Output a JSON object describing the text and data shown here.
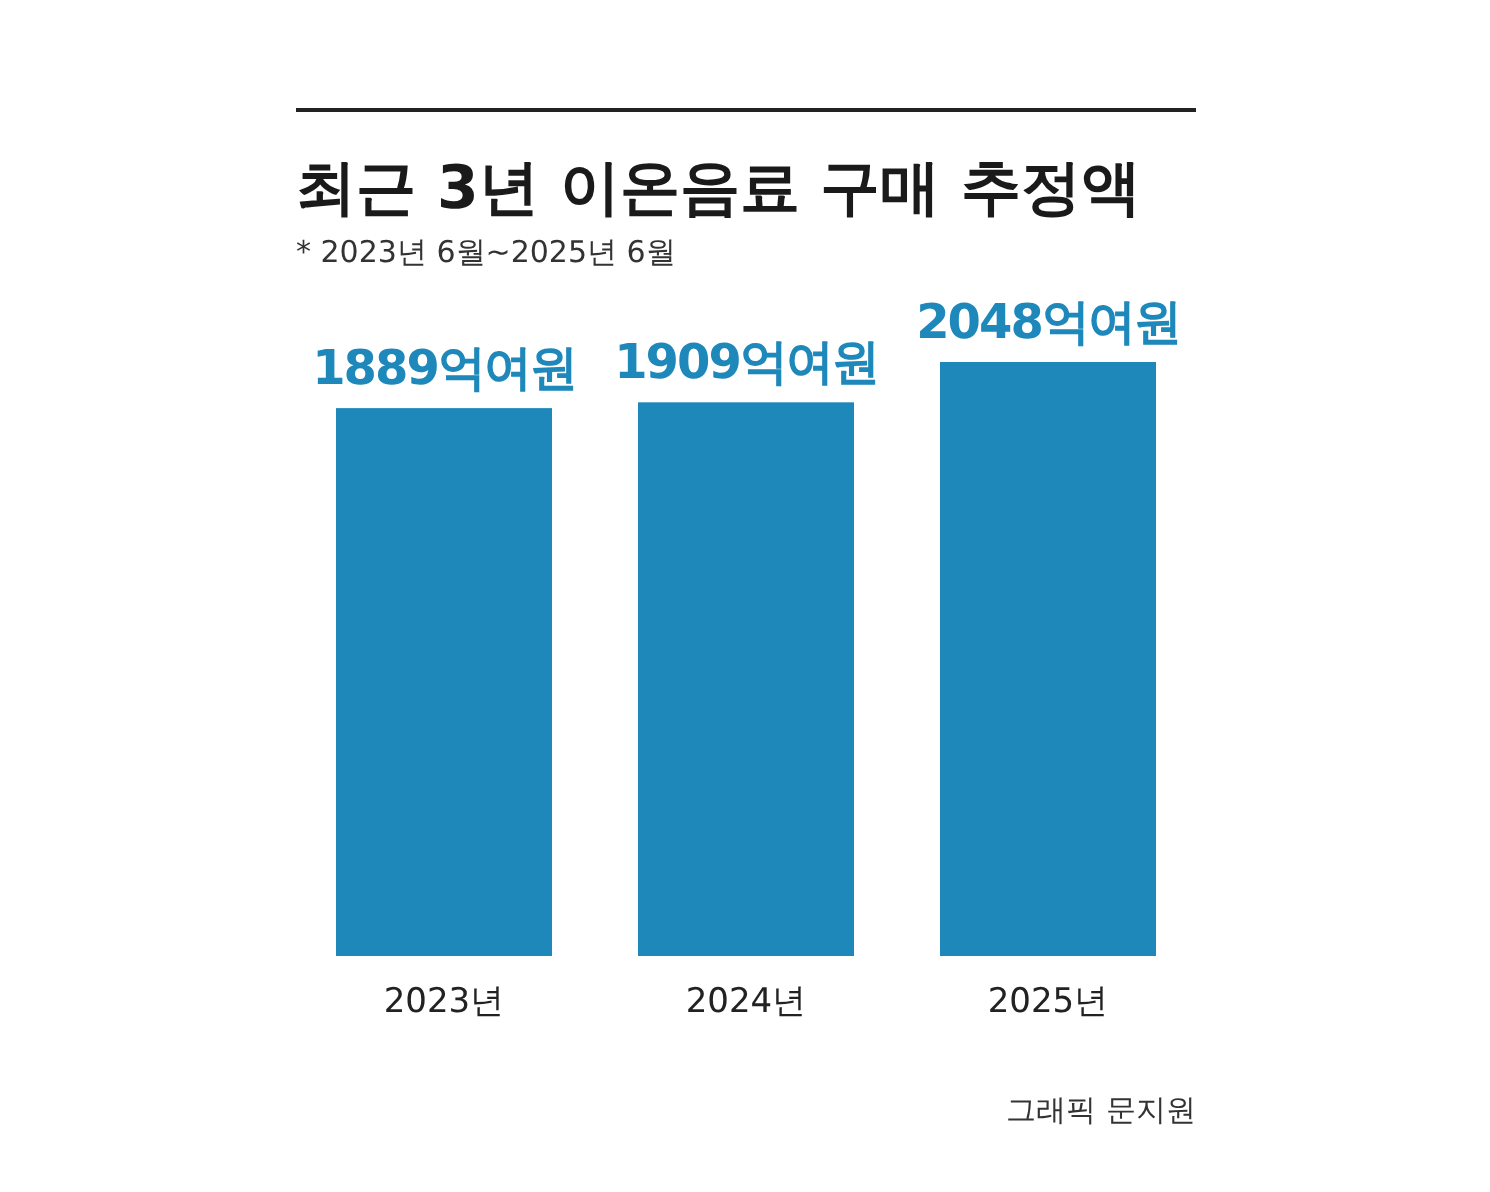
{
  "chart_data": {
    "type": "bar",
    "title": "최근 3년 이온음료 구매 추정액",
    "subtitle": "* 2023년 6월~2025년 6월",
    "categories": [
      "2023년",
      "2024년",
      "2025년"
    ],
    "values": [
      1889,
      1909,
      2048
    ],
    "value_labels": [
      "1889억여원",
      "1909억여원",
      "2048억여원"
    ],
    "color": "#1e88bb",
    "annotations": [
      "그래픽 문지원"
    ]
  }
}
